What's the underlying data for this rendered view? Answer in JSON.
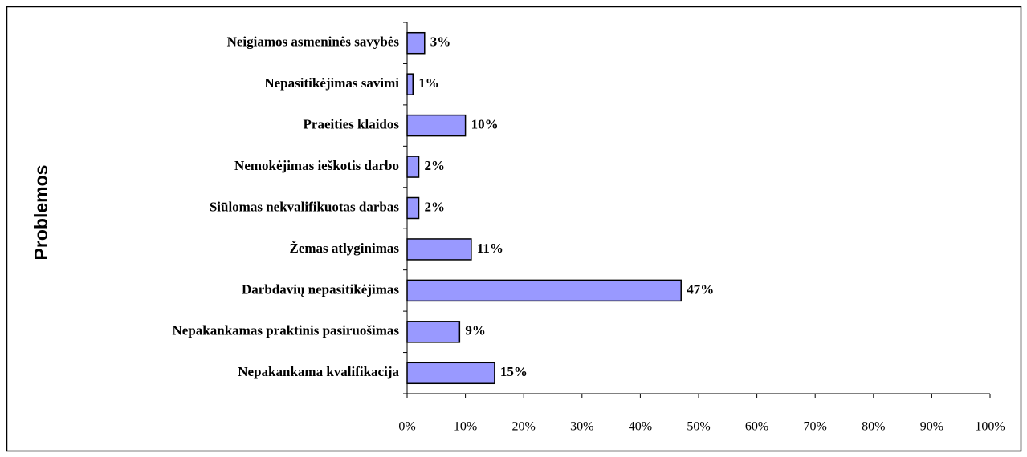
{
  "chart_data": {
    "type": "hbar",
    "y_axis_label": "Problemos",
    "categories": [
      "Neigiamos asmeninės savybės",
      "Nepasitikėjimas savimi",
      "Praeities klaidos",
      "Nemokėjimas ieškotis darbo",
      "Siūlomas nekvalifikuotas darbas",
      "Žemas atlyginimas",
      "Darbdavių nepasitikėjimas",
      "Nepakankamas praktinis pasiruošimas",
      "Nepakankama kvalifikacija"
    ],
    "values": [
      3,
      1,
      10,
      2,
      2,
      11,
      47,
      9,
      15
    ],
    "value_labels": [
      "3%",
      "1%",
      "10%",
      "2%",
      "2%",
      "11%",
      "47%",
      "9%",
      "15%"
    ],
    "color": "#9999ff",
    "xlim": [
      0,
      100
    ],
    "xticks": [
      {
        "value": 0,
        "label": "0%"
      },
      {
        "value": 10,
        "label": "10%"
      },
      {
        "value": 20,
        "label": "20%"
      },
      {
        "value": 30,
        "label": "30%"
      },
      {
        "value": 40,
        "label": "40%"
      },
      {
        "value": 50,
        "label": "50%"
      },
      {
        "value": 60,
        "label": "60%"
      },
      {
        "value": 70,
        "label": "70%"
      },
      {
        "value": 80,
        "label": "80%"
      },
      {
        "value": 90,
        "label": "90%"
      },
      {
        "value": 100,
        "label": "100%"
      }
    ],
    "grid": false
  }
}
